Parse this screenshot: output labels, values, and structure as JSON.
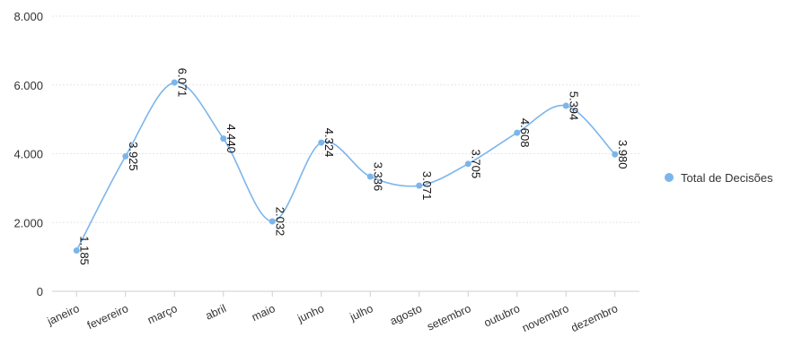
{
  "chart_data": {
    "type": "line",
    "smooth": true,
    "categories": [
      "janeiro",
      "fevereiro",
      "março",
      "abril",
      "maio",
      "junho",
      "julho",
      "agosto",
      "setembro",
      "outubro",
      "novembro",
      "dezembro"
    ],
    "series": [
      {
        "name": "Total de Decisões",
        "color": "#7cb5ec",
        "values": [
          1185,
          3925,
          6071,
          4440,
          2032,
          4324,
          3336,
          3071,
          3705,
          4608,
          5394,
          3980
        ],
        "data_labels": [
          "1.185",
          "3.925",
          "6.071",
          "4.440",
          "2.032",
          "4.324",
          "3.336",
          "3.071",
          "3.705",
          "4.608",
          "5.394",
          "3.980"
        ]
      }
    ],
    "yaxis": {
      "min": 0,
      "max": 8000,
      "ticks": [
        0,
        2000,
        4000,
        6000,
        8000
      ],
      "tick_labels": [
        "0",
        "2.000",
        "4.000",
        "6.000",
        "8.000"
      ]
    },
    "grid": true,
    "legend": {
      "position": "right",
      "items": [
        "Total de Decisões"
      ]
    }
  }
}
